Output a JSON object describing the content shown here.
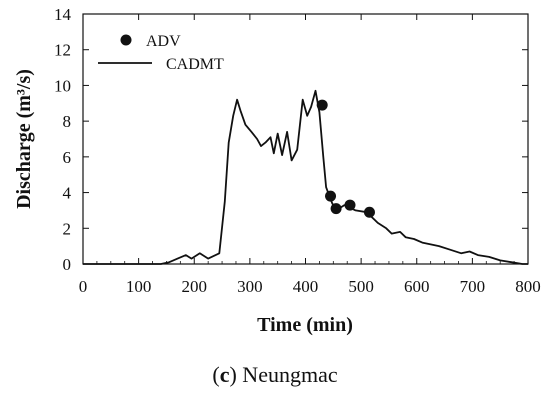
{
  "chart_data": {
    "type": "line",
    "xlabel": "Time (min)",
    "ylabel": "Discharge (m³/s)",
    "xlim": [
      0,
      800
    ],
    "ylim": [
      0,
      14
    ],
    "x_ticks": [
      0,
      100,
      200,
      300,
      400,
      500,
      600,
      700,
      800
    ],
    "y_ticks": [
      0,
      2,
      4,
      6,
      8,
      10,
      12,
      14
    ],
    "grid": false,
    "legend_position": "top-left",
    "series": [
      {
        "name": "CADMT",
        "style": "line",
        "color": "#111111",
        "x": [
          0,
          140,
          155,
          170,
          185,
          195,
          210,
          225,
          245,
          255,
          262,
          270,
          277,
          283,
          292,
          303,
          313,
          320,
          328,
          337,
          343,
          350,
          358,
          367,
          375,
          385,
          395,
          403,
          410,
          418,
          425,
          432,
          437,
          443,
          448,
          455,
          470,
          490,
          510,
          530,
          545,
          555,
          570,
          580,
          595,
          610,
          625,
          640,
          660,
          680,
          695,
          710,
          730,
          750,
          770,
          790,
          800
        ],
        "values": [
          0,
          0,
          0.1,
          0.3,
          0.5,
          0.3,
          0.6,
          0.3,
          0.6,
          3.5,
          6.8,
          8.3,
          9.2,
          8.6,
          7.8,
          7.4,
          7.0,
          6.6,
          6.8,
          7.1,
          6.2,
          7.3,
          6.1,
          7.4,
          5.8,
          6.4,
          9.2,
          8.3,
          8.8,
          9.7,
          8.5,
          6.0,
          4.3,
          3.8,
          3.4,
          3.0,
          3.3,
          3.0,
          2.9,
          2.3,
          2.0,
          1.7,
          1.8,
          1.5,
          1.4,
          1.2,
          1.1,
          1.0,
          0.8,
          0.6,
          0.7,
          0.5,
          0.4,
          0.2,
          0.1,
          0.0,
          0.0
        ]
      },
      {
        "name": "ADV",
        "style": "scatter",
        "color": "#111111",
        "x": [
          430,
          445,
          455,
          480,
          515
        ],
        "values": [
          8.9,
          3.8,
          3.1,
          3.3,
          2.9
        ]
      }
    ]
  },
  "caption": {
    "prefix": "(",
    "label": "c",
    "suffix": ") Neungmac"
  }
}
